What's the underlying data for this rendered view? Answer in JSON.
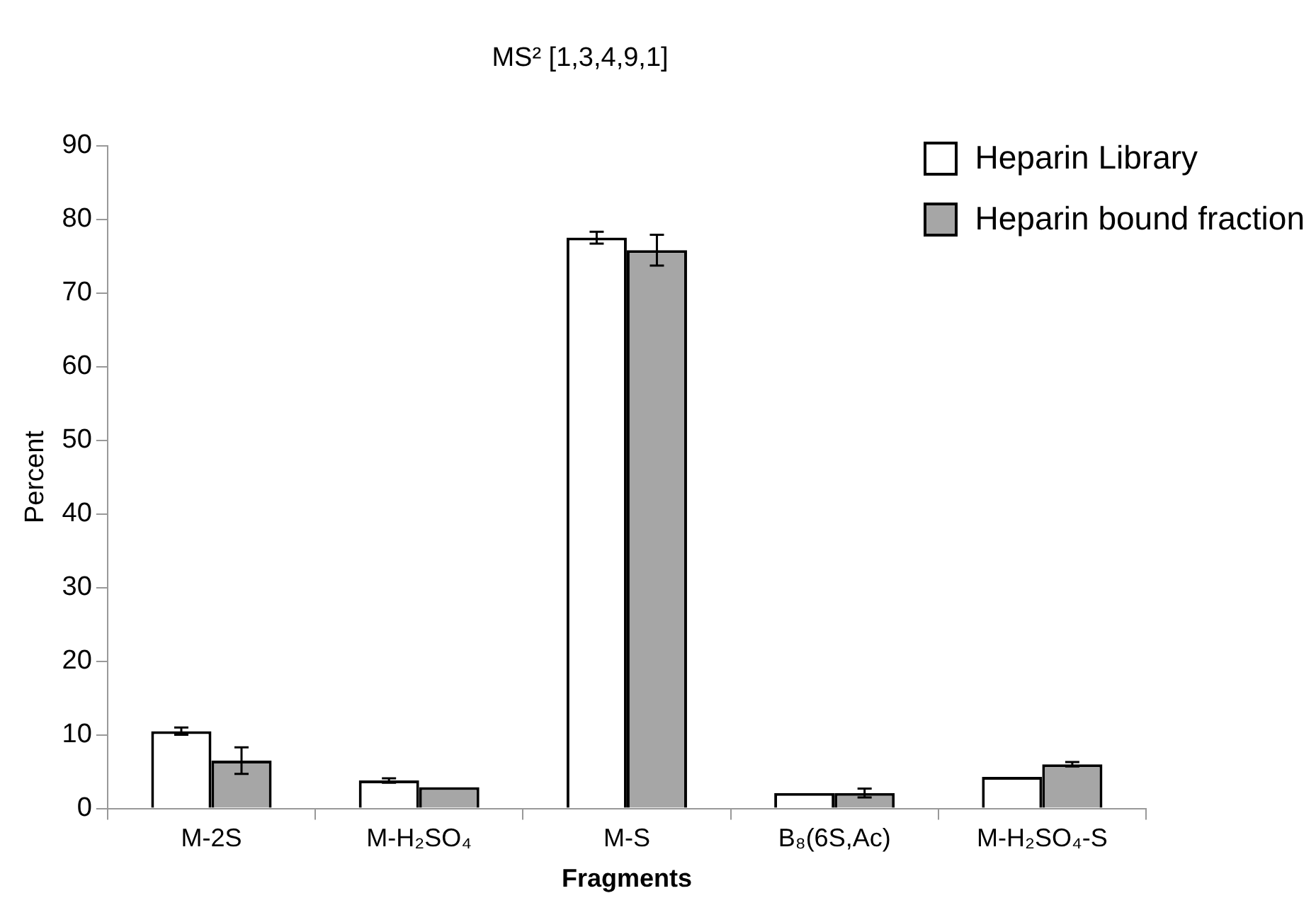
{
  "chart_data": {
    "type": "bar",
    "title": "MS² [1,3,4,9,1]",
    "xlabel": "Fragments",
    "ylabel": "Percent",
    "categories": [
      "M-2S",
      "M-H₂SO₄",
      "M-S",
      "B₈(6S,Ac)",
      "M-H₂SO₄-S"
    ],
    "series": [
      {
        "name": "Heparin Library",
        "color": "#ffffff",
        "values": [
          10.5,
          3.8,
          77.5,
          2.1,
          4.3
        ],
        "errors": [
          0.5,
          0.3,
          0.8,
          null,
          null
        ]
      },
      {
        "name": "Heparin bound fraction",
        "color": "#a6a6a6",
        "values": [
          6.5,
          2.9,
          75.8,
          2.1,
          6.0
        ],
        "errors": [
          1.8,
          null,
          2.1,
          0.6,
          0.3
        ]
      }
    ],
    "ylim": [
      0,
      90
    ],
    "yticks": [
      0,
      10,
      20,
      30,
      40,
      50,
      60,
      70,
      80,
      90
    ],
    "grid": false,
    "legend": "top right"
  }
}
